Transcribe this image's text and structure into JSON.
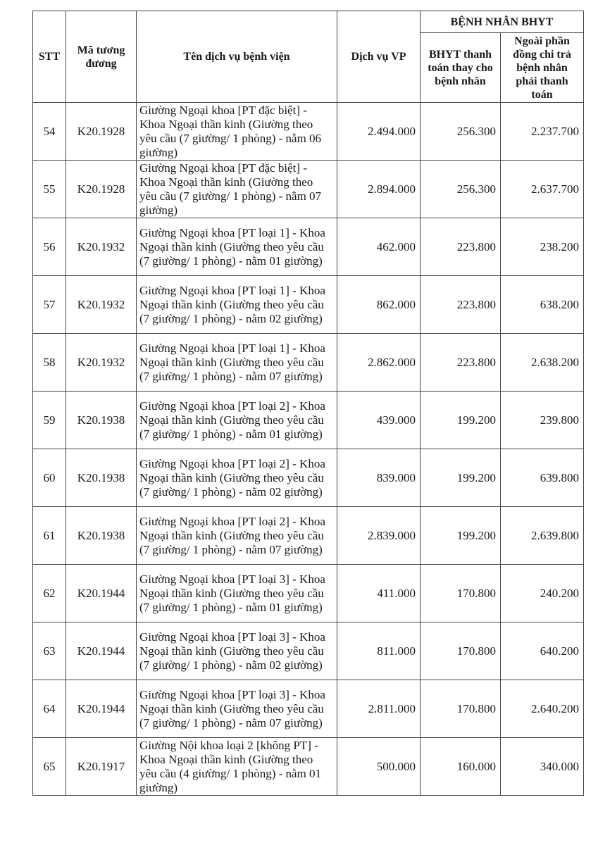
{
  "header": {
    "stt": "STT",
    "ma": "Mã tương\nđương",
    "ten": "Tên dịch vụ bệnh viện",
    "dichvu": "Dịch vụ VP",
    "group": "BỆNH NHÂN BHYT",
    "bhyt": "BHYT thanh\ntoán thay cho\nbệnh nhân",
    "ngoai": "Ngoài phần\nđồng chi trả\nbệnh nhân\nphải thanh\ntoán"
  },
  "rows": [
    {
      "stt": "54",
      "ma": "K20.1928",
      "ten": "Giường Ngoại khoa [PT đặc biệt] -\nKhoa Ngoại thần kinh (Giường theo\nyêu cầu (7 giường/ 1 phòng) - nằm 06\ngiường)",
      "vp": "2.494.000",
      "bhyt": "256.300",
      "ngoai": "2.237.700"
    },
    {
      "stt": "55",
      "ma": "K20.1928",
      "ten": "Giường Ngoại khoa [PT đặc biệt] -\nKhoa Ngoại thần kinh (Giường theo\nyêu cầu (7 giường/ 1 phòng) - nằm 07\ngiường)",
      "vp": "2.894.000",
      "bhyt": "256.300",
      "ngoai": "2.637.700"
    },
    {
      "stt": "56",
      "ma": "K20.1932",
      "ten": "Giường Ngoại khoa [PT loại 1] - Khoa\nNgoại thần kinh (Giường theo yêu cầu\n(7 giường/ 1 phòng) - nằm 01 giường)",
      "vp": "462.000",
      "bhyt": "223.800",
      "ngoai": "238.200"
    },
    {
      "stt": "57",
      "ma": "K20.1932",
      "ten": "Giường Ngoại khoa [PT loại 1] - Khoa\nNgoại thần kinh (Giường theo yêu cầu\n(7 giường/ 1 phòng) - nằm 02 giường)",
      "vp": "862.000",
      "bhyt": "223.800",
      "ngoai": "638.200"
    },
    {
      "stt": "58",
      "ma": "K20.1932",
      "ten": "Giường Ngoại khoa [PT loại 1] - Khoa\nNgoại thần kinh (Giường theo yêu cầu\n(7 giường/ 1 phòng) - nằm 07 giường)",
      "vp": "2.862.000",
      "bhyt": "223.800",
      "ngoai": "2.638.200"
    },
    {
      "stt": "59",
      "ma": "K20.1938",
      "ten": "Giường Ngoại khoa [PT loại 2] - Khoa\nNgoại thần kinh (Giường theo yêu cầu\n(7 giường/ 1 phòng) - nằm 01 giường)",
      "vp": "439.000",
      "bhyt": "199.200",
      "ngoai": "239.800"
    },
    {
      "stt": "60",
      "ma": "K20.1938",
      "ten": "Giường Ngoại khoa [PT loại 2] - Khoa\nNgoại thần kinh (Giường theo yêu cầu\n(7 giường/ 1 phòng) - nằm 02 giường)",
      "vp": "839.000",
      "bhyt": "199.200",
      "ngoai": "639.800"
    },
    {
      "stt": "61",
      "ma": "K20.1938",
      "ten": "Giường Ngoại khoa [PT loại 2] - Khoa\nNgoại thần kinh (Giường theo yêu cầu\n(7 giường/ 1 phòng) - nằm 07 giường)",
      "vp": "2.839.000",
      "bhyt": "199.200",
      "ngoai": "2.639.800"
    },
    {
      "stt": "62",
      "ma": "K20.1944",
      "ten": "Giường Ngoại khoa [PT loại 3] - Khoa\nNgoại thần kinh (Giường theo yêu cầu\n(7 giường/ 1 phòng) - nằm 01 giường)",
      "vp": "411.000",
      "bhyt": "170.800",
      "ngoai": "240.200"
    },
    {
      "stt": "63",
      "ma": "K20.1944",
      "ten": "Giường Ngoại khoa [PT loại 3] - Khoa\nNgoại thần kinh (Giường theo yêu cầu\n(7 giường/ 1 phòng) - nằm 02 giường)",
      "vp": "811.000",
      "bhyt": "170.800",
      "ngoai": "640.200"
    },
    {
      "stt": "64",
      "ma": "K20.1944",
      "ten": "Giường Ngoại khoa [PT loại 3] - Khoa\nNgoại thần kinh (Giường theo yêu cầu\n(7 giường/ 1 phòng) - nằm 07 giường)",
      "vp": "2.811.000",
      "bhyt": "170.800",
      "ngoai": "2.640.200"
    },
    {
      "stt": "65",
      "ma": "K20.1917",
      "ten": "Giường Nội khoa loại 2 [không PT] -\nKhoa Ngoại thần kinh (Giường theo\nyêu cầu (4 giường/ 1 phòng) - nằm 01\ngiường)",
      "vp": "500.000",
      "bhyt": "160.000",
      "ngoai": "340.000"
    }
  ]
}
